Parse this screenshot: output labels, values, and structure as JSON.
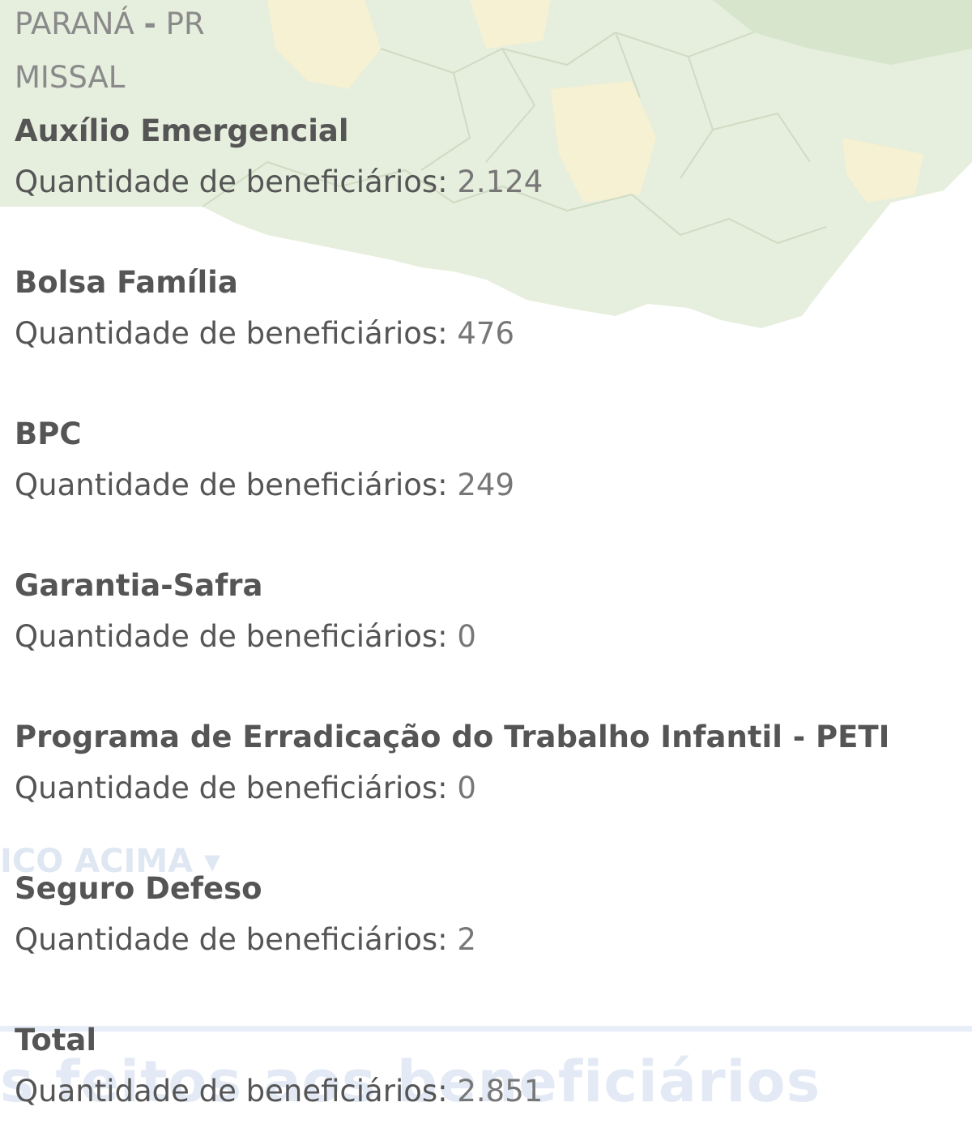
{
  "location": {
    "state": "PARANÁ",
    "separator": "-",
    "state_code": "PR",
    "city": "MISSAL"
  },
  "count_label": "Quantidade de beneficiários:",
  "programs": [
    {
      "title": "Auxílio Emergencial",
      "count": "2.124"
    },
    {
      "title": "Bolsa Família",
      "count": "476"
    },
    {
      "title": "BPC",
      "count": "249"
    },
    {
      "title": "Garantia-Safra",
      "count": "0"
    },
    {
      "title": "Programa de Erradicação do Trabalho Infantil - PETI",
      "count": "0"
    },
    {
      "title": "Seguro Defeso",
      "count": "2"
    },
    {
      "title": "Total",
      "count": "2.851"
    }
  ],
  "background": {
    "faded_label": "ICO ACIMA ▾",
    "faded_heading": "s feitos aos beneficiários"
  },
  "colors": {
    "text_dark": "#555555",
    "text_light": "#8a8a8a",
    "map_green": "#e3ecd9",
    "map_yellow": "#f5f0cf"
  }
}
